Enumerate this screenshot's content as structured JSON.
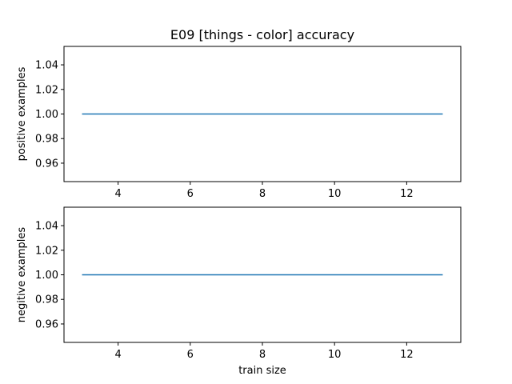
{
  "chart_data": {
    "type": "line",
    "title": "E09 [things - color] accuracy",
    "shared_xlabel": "train size",
    "color": "#1f77b4",
    "subplots": [
      {
        "ylabel": "positive examples",
        "xlim": [
          2.5,
          13.5
        ],
        "ylim": [
          0.945,
          1.055
        ],
        "xticks": [
          4,
          6,
          8,
          10,
          12
        ],
        "yticks": [
          0.96,
          0.98,
          1.0,
          1.02,
          1.04
        ],
        "ytick_labels": [
          "0.96",
          "0.98",
          "1.00",
          "1.02",
          "1.04"
        ],
        "series": [
          {
            "x": [
              3,
              4,
              5,
              6,
              7,
              8,
              9,
              10,
              11,
              12,
              13
            ],
            "y": [
              1,
              1,
              1,
              1,
              1,
              1,
              1,
              1,
              1,
              1,
              1
            ]
          }
        ]
      },
      {
        "ylabel": "negitive examples",
        "xlim": [
          2.5,
          13.5
        ],
        "ylim": [
          0.945,
          1.055
        ],
        "xticks": [
          4,
          6,
          8,
          10,
          12
        ],
        "yticks": [
          0.96,
          0.98,
          1.0,
          1.02,
          1.04
        ],
        "ytick_labels": [
          "0.96",
          "0.98",
          "1.00",
          "1.02",
          "1.04"
        ],
        "series": [
          {
            "x": [
              3,
              4,
              5,
              6,
              7,
              8,
              9,
              10,
              11,
              12,
              13
            ],
            "y": [
              1,
              1,
              1,
              1,
              1,
              1,
              1,
              1,
              1,
              1,
              1
            ]
          }
        ]
      }
    ]
  }
}
